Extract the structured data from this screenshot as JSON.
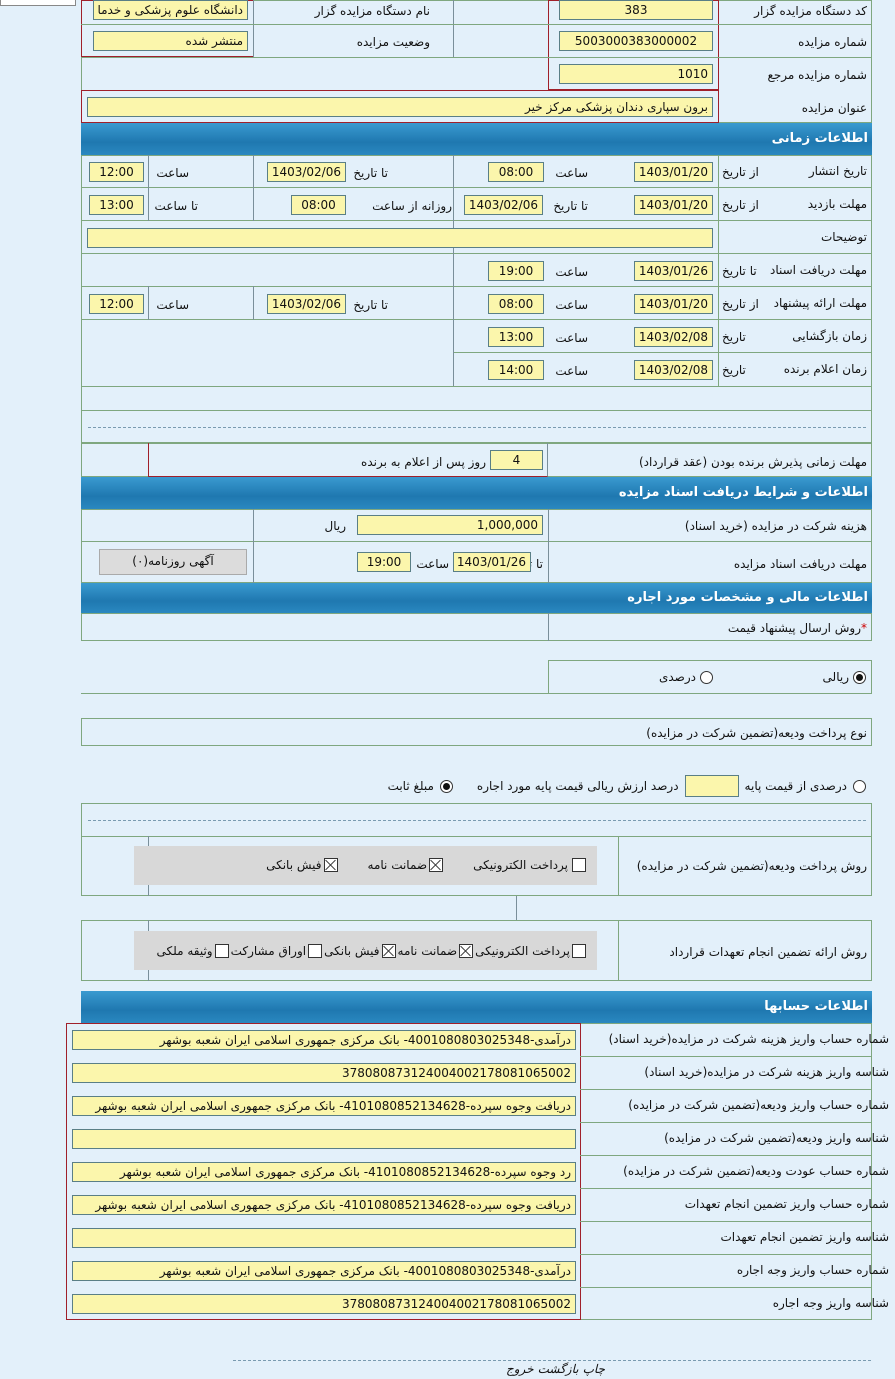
{
  "top": {
    "org_code_label": "کد دستگاه مزایده گزار",
    "org_code": "383",
    "org_name_label": "نام دستگاه مزایده گزار",
    "org_name": "دانشگاه علوم پزشکی و خدما",
    "auction_no_label": "شماره مزایده",
    "auction_no": "5003000383000002",
    "status_label": "وضعیت مزایده",
    "status": "منتشر شده",
    "ref_no_label": "شماره مزایده مرجع",
    "ref_no": "1010",
    "title_label": "عنوان مزایده",
    "title": "برون سپاری دندان پزشکی مرکز خیر"
  },
  "time": {
    "header": "اطلاعات زمانی",
    "publish": {
      "label": "تاریخ انتشار",
      "from_label": "از تاریخ",
      "from": "1403/01/20",
      "time_label": "ساعت",
      "time": "08:00",
      "to_label": "تا تاریخ",
      "to": "1403/02/06",
      "time2_label": "ساعت",
      "time2": "12:00"
    },
    "visit": {
      "label": "مهلت بازدید",
      "from_label": "از تاریخ",
      "from": "1403/01/20",
      "to_label": "تا تاریخ",
      "to": "1403/02/06",
      "daily_label": "روزانه از ساعت",
      "daily": "08:00",
      "until_label": "تا ساعت",
      "until": "13:00"
    },
    "notes_label": "توضیحات",
    "notes": "",
    "docs": {
      "label": "مهلت دریافت اسناد",
      "to_label": "تا تاریخ",
      "to": "1403/01/26",
      "time_label": "ساعت",
      "time": "19:00"
    },
    "offers": {
      "label": "مهلت ارائه پیشنهاد",
      "from_label": "از تاریخ",
      "from": "1403/01/20",
      "time_label": "ساعت",
      "time": "08:00",
      "to_label": "تا تاریخ",
      "to": "1403/02/06",
      "time2_label": "ساعت",
      "time2": "12:00"
    },
    "opening": {
      "label": "زمان بازگشایی",
      "date_label": "تاریخ",
      "date": "1403/02/08",
      "time_label": "ساعت",
      "time": "13:00"
    },
    "winner": {
      "label": "زمان اعلام برنده",
      "date_label": "تاریخ",
      "date": "1403/02/08",
      "time_label": "ساعت",
      "time": "14:00"
    },
    "accept": {
      "label": "مهلت زمانی پذیرش برنده بودن (عقد قرارداد)",
      "days": "4",
      "suffix": "روز پس از اعلام به برنده"
    }
  },
  "docs": {
    "header": "اطلاعات و شرایط دریافت اسناد مزایده",
    "fee_label": "هزینه شرکت در مزایده (خرید اسناد)",
    "fee": "1,000,000",
    "currency": "ریال",
    "deadline_label": "مهلت دریافت اسناد مزایده",
    "to_label": "تا تاریخ",
    "to": "1403/01/26",
    "time_label": "ساعت",
    "time": "19:00",
    "newspaper_button": "آگهی روزنامه(۰)"
  },
  "finance": {
    "header": "اطلاعات مالی و مشخصات مورد اجاره",
    "req": "*",
    "price_method_label": "روش ارسال پیشنهاد قیمت",
    "rial_label": "ریالی",
    "percent_label": "درصدی",
    "deposit_type_label": "نوع پرداخت ودیعه(تضمین شرکت در مزایده)",
    "percent_base_label": "درصدی از قیمت پایه",
    "percent_value": "",
    "percent_desc": "درصد ارزش ریالی قیمت پایه مورد اجاره",
    "fixed_label": "مبلغ ثابت",
    "deposit_method_label": "روش پرداخت ودیعه(تضمین شرکت در مزایده)",
    "deposit_methods": [
      {
        "label": "پرداخت الکترونیکی",
        "checked": false
      },
      {
        "label": "ضمانت نامه",
        "checked": true
      },
      {
        "label": "فیش بانکی",
        "checked": true
      }
    ],
    "guarantee_label": "روش ارائه تضمین انجام تعهدات قرارداد",
    "guarantee_methods": [
      {
        "label": "پرداخت الکترونیکی",
        "checked": false
      },
      {
        "label": "ضمانت نامه",
        "checked": true
      },
      {
        "label": "فیش بانکی",
        "checked": true
      },
      {
        "label": "اوراق مشارکت",
        "checked": false
      },
      {
        "label": "وثیقه ملکی",
        "checked": false
      }
    ]
  },
  "accounts": {
    "header": "اطلاعات حسابها",
    "rows": [
      {
        "label": "شماره حساب واریز هزینه شرکت در مزایده(خرید اسناد)",
        "value": "درآمدی-4001080803025348- بانک مرکزی جمهوری اسلامی ایران شعبه بوشهر"
      },
      {
        "label": "شناسه واریز هزینه شرکت در مزایده(خرید اسناد)",
        "value": "378080873124004002178081065002"
      },
      {
        "label": "شماره حساب واریز ودیعه(تضمین شرکت در مزایده)",
        "value": "دریافت وجوه سپرده-4101080852134628- بانک مرکزی جمهوری اسلامی ایران شعبه بوشهر"
      },
      {
        "label": "شناسه واریز ودیعه(تضمین شرکت در مزایده)",
        "value": ""
      },
      {
        "label": "شماره حساب عودت ودیعه(تضمین شرکت در مزایده)",
        "value": "رد وجوه سپرده-4101080852134628- بانک مرکزی جمهوری اسلامی ایران شعبه بوشهر"
      },
      {
        "label": "شماره حساب واریز تضمین انجام تعهدات",
        "value": "دریافت وجوه سپرده-4101080852134628- بانک مرکزی جمهوری اسلامی ایران شعبه بوشهر"
      },
      {
        "label": "شناسه واریز تضمین انجام تعهدات",
        "value": ""
      },
      {
        "label": "شماره حساب واریز وجه اجاره",
        "value": "درآمدی-4001080803025348- بانک مرکزی جمهوری اسلامی ایران شعبه بوشهر"
      },
      {
        "label": "شناسه واریز وجه اجاره",
        "value": "378080873124004002178081065002"
      }
    ]
  },
  "footer": {
    "print": "چاپ",
    "back": "بازگشت",
    "exit": "خروج"
  }
}
